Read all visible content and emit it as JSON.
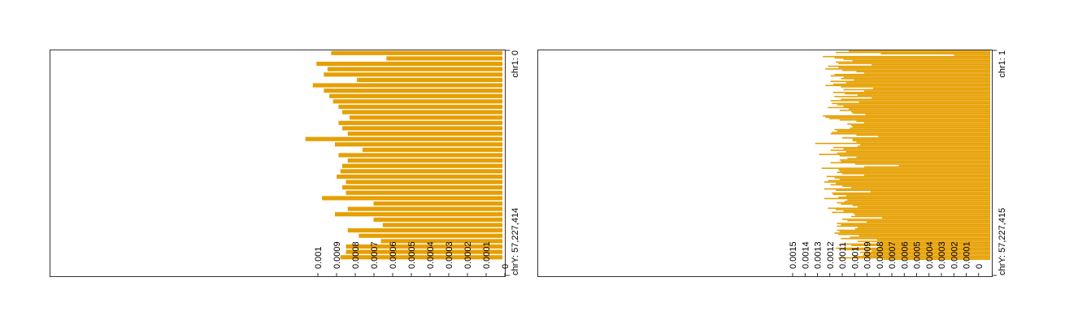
{
  "chart_data": [
    {
      "type": "bar",
      "orientation": "horizontal",
      "bar_direction": "right-to-left",
      "color": "#E69F00",
      "range_labels": {
        "start": "chr1: 0",
        "end": "chrY: 57,227,414"
      },
      "tick_labels": [
        "0.001",
        "0.0009",
        "0.0008",
        "0.0007",
        "0.0006",
        "0.0005",
        "0.0004",
        "0.0003",
        "0.0002",
        "0.0001",
        "0"
      ],
      "xlim": [
        0,
        0.00102
      ],
      "values": [
        0.00093,
        0.00063,
        0.00101,
        0.00095,
        0.00097,
        0.00079,
        0.00103,
        0.00097,
        0.00094,
        0.00092,
        0.00089,
        0.00087,
        0.00083,
        0.00089,
        0.00087,
        0.00084,
        0.00107,
        0.00091,
        0.00076,
        0.00089,
        0.00084,
        0.00087,
        0.00088,
        0.0009,
        0.00085,
        0.00087,
        0.00085,
        0.00098,
        0.0007,
        0.00084,
        0.00091,
        0.0007,
        0.00065,
        0.00084,
        0.00078,
        0.00066,
        0.00085,
        0.00085,
        0.00088
      ]
    },
    {
      "type": "bar",
      "orientation": "horizontal",
      "bar_direction": "right-to-left",
      "color": "#E69F00",
      "range_labels": {
        "start": "chr1: 1",
        "end": "chrY: 57,227,415"
      },
      "tick_labels": [
        "0.0015",
        "0.0014",
        "0.0013",
        "0.0012",
        "0.0011",
        "0.001",
        "0.0009",
        "0.0008",
        "0.0007",
        "0.0006",
        "0.0005",
        "0.0004",
        "0.0003",
        "0.0002",
        "0.0001",
        "0"
      ],
      "xlim": [
        0,
        0.00156
      ],
      "values": [
        0.0011,
        0.0012,
        0.00085,
        0.00028,
        0.0013,
        0.00121,
        0.00114,
        0.00107,
        0.0012,
        0.00118,
        0.00092,
        0.00126,
        0.00118,
        0.00128,
        0.00115,
        0.00104,
        0.00098,
        0.00121,
        0.00124,
        0.00114,
        0.00116,
        0.00106,
        0.00124,
        0.00112,
        0.00122,
        0.00128,
        0.00116,
        0.00091,
        0.00114,
        0.00098,
        0.00122,
        0.00113,
        0.00103,
        0.00121,
        0.00092,
        0.00116,
        0.00124,
        0.00102,
        0.00123,
        0.00119,
        0.00114,
        0.00126,
        0.0011,
        0.00117,
        0.00108,
        0.00107,
        0.00097,
        0.0013,
        0.00128,
        0.00125,
        0.00117,
        0.00104,
        0.00098,
        0.00111,
        0.00108,
        0.00107,
        0.00109,
        0.00121,
        0.00119,
        0.00123,
        0.00124,
        0.00104,
        0.00087,
        0.00115,
        0.00107,
        0.00107,
        0.00104,
        0.00136,
        0.00101,
        0.00103,
        0.00122,
        0.00114,
        0.00124,
        0.00112,
        0.00119,
        0.00133,
        0.00117,
        0.00104,
        0.00111,
        0.00117,
        0.00116,
        0.00124,
        0.00105,
        0.00071,
        0.00098,
        0.00131,
        0.00118,
        0.00117,
        0.00119,
        0.00115,
        0.00098,
        0.00127,
        0.00121,
        0.00117,
        0.00126,
        0.00129,
        0.0012,
        0.00124,
        0.00115,
        0.00108,
        0.00129,
        0.0012,
        0.00093,
        0.00123,
        0.00122,
        0.00112,
        0.00118,
        0.00129,
        0.00111,
        0.00113,
        0.00119,
        0.00116,
        0.00107,
        0.00103,
        0.00126,
        0.0012,
        0.00114,
        0.00123,
        0.00106,
        0.00105,
        0.00108,
        0.00084,
        0.00115,
        0.00111,
        0.00096,
        0.00119,
        0.00116,
        0.00119,
        0.00103,
        0.00105,
        0.00119,
        0.00117,
        0.00121,
        0.00118,
        0.00102,
        0.00109,
        0.00116,
        0.00088,
        0.00103,
        0.00085,
        0.00116,
        0.00108,
        0.00086,
        0.0012,
        0.00113,
        0.00092,
        0.00101,
        0.00098,
        0.00099,
        0.00106,
        0.00118,
        0.00083
      ]
    }
  ]
}
